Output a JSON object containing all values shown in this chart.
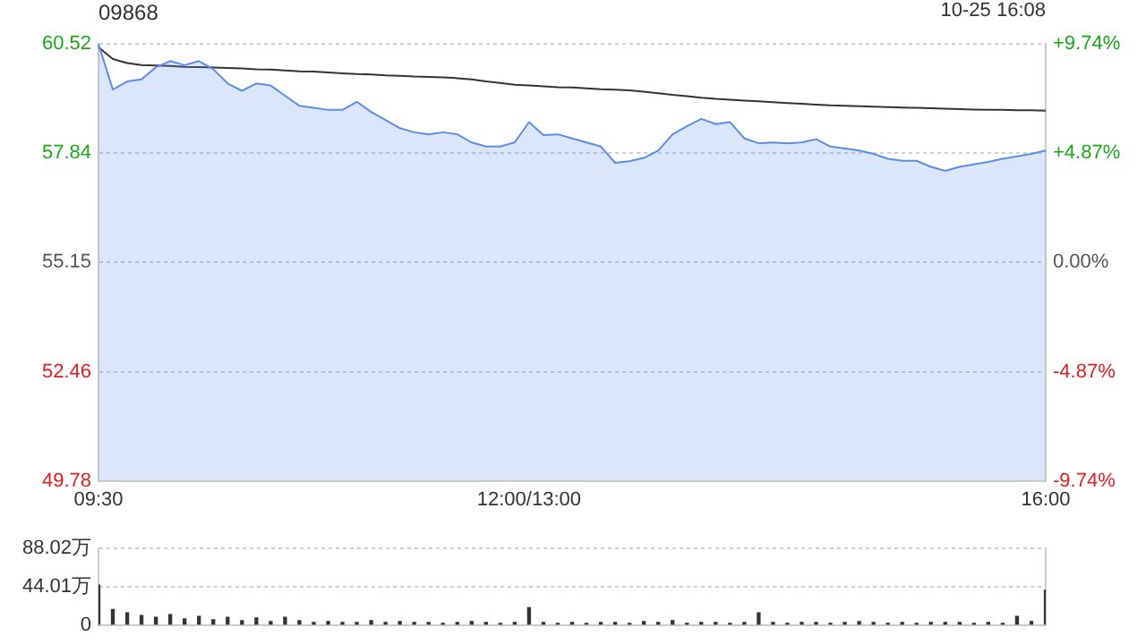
{
  "chart_data": [
    {
      "type": "line",
      "title": "09868",
      "annotations": [
        "10-25 16:08"
      ],
      "categories": [
        "09:30",
        null,
        null,
        null,
        null,
        null,
        null,
        null,
        null,
        null,
        null,
        null,
        null,
        null,
        null,
        null,
        null,
        null,
        null,
        null,
        null,
        null,
        null,
        null,
        null,
        null,
        null,
        null,
        null,
        null,
        "12:00/13:00",
        null,
        null,
        null,
        null,
        null,
        null,
        null,
        null,
        null,
        null,
        null,
        null,
        null,
        null,
        null,
        null,
        null,
        null,
        null,
        null,
        null,
        null,
        null,
        null,
        null,
        null,
        null,
        null,
        null,
        null,
        null,
        null,
        null,
        null,
        null,
        "16:00"
      ],
      "ylim": [
        49.78,
        60.52
      ],
      "yticks": [
        49.78,
        52.46,
        55.15,
        57.84,
        60.52
      ],
      "y2lim": [
        -9.74,
        9.74
      ],
      "y2ticks": [
        {
          "value": -9.74,
          "label": "-9.74%"
        },
        {
          "value": -4.87,
          "label": "-4.87%"
        },
        {
          "value": 0,
          "label": "0.00%"
        },
        {
          "value": 4.87,
          "label": "+4.87%"
        },
        {
          "value": 9.74,
          "label": "+9.74%"
        }
      ],
      "grid": true,
      "marker": "none",
      "series": [
        {
          "type": "area",
          "color": "#5b8ee6",
          "values": [
            60.52,
            59.4,
            59.6,
            59.65,
            59.95,
            60.1,
            60.0,
            60.1,
            59.9,
            59.55,
            59.37,
            59.55,
            59.5,
            59.25,
            59.0,
            58.95,
            58.9,
            58.9,
            59.1,
            58.85,
            58.65,
            58.45,
            58.35,
            58.3,
            58.35,
            58.3,
            58.1,
            58.0,
            58.0,
            58.1,
            58.6,
            58.28,
            58.3,
            58.2,
            58.1,
            58.0,
            57.6,
            57.64,
            57.72,
            57.9,
            58.3,
            58.5,
            58.68,
            58.55,
            58.6,
            58.2,
            58.08,
            58.1,
            58.08,
            58.1,
            58.18,
            58.0,
            57.95,
            57.9,
            57.82,
            57.7,
            57.65,
            57.65,
            57.5,
            57.4,
            57.5,
            57.56,
            57.62,
            57.7,
            57.76,
            57.82,
            57.9
          ]
        },
        {
          "type": "line",
          "color": "#333333",
          "values": [
            60.44,
            60.15,
            60.05,
            60.0,
            59.99,
            59.98,
            59.96,
            59.95,
            59.94,
            59.93,
            59.92,
            59.9,
            59.89,
            59.87,
            59.85,
            59.84,
            59.82,
            59.8,
            59.78,
            59.77,
            59.75,
            59.74,
            59.72,
            59.71,
            59.7,
            59.68,
            59.65,
            59.6,
            59.56,
            59.52,
            59.5,
            59.48,
            59.46,
            59.45,
            59.43,
            59.41,
            59.4,
            59.38,
            59.35,
            59.31,
            59.27,
            59.24,
            59.2,
            59.17,
            59.15,
            59.13,
            59.11,
            59.09,
            59.07,
            59.05,
            59.03,
            59.01,
            59.0,
            58.99,
            58.98,
            58.97,
            58.96,
            58.95,
            58.94,
            58.93,
            58.92,
            58.91,
            58.9,
            58.9,
            58.89,
            58.89,
            58.88
          ]
        }
      ]
    },
    {
      "type": "bar",
      "categories": [
        null,
        null,
        null,
        null,
        null,
        null,
        null,
        null,
        null,
        null,
        null,
        null,
        null,
        null,
        null,
        null,
        null,
        null,
        null,
        null,
        null,
        null,
        null,
        null,
        null,
        null,
        null,
        null,
        null,
        null,
        null,
        null,
        null,
        null,
        null,
        null,
        null,
        null,
        null,
        null,
        null,
        null,
        null,
        null,
        null,
        null,
        null,
        null,
        null,
        null,
        null,
        null,
        null,
        null,
        null,
        null,
        null,
        null,
        null,
        null,
        null,
        null,
        null,
        null,
        null,
        null,
        null
      ],
      "ylim": [
        0,
        88.02
      ],
      "yticks": [
        0,
        {
          "value": 44.01,
          "label": "44.01万"
        },
        {
          "value": 88.02,
          "label": "88.02万"
        }
      ],
      "grid": "y",
      "tick_labels": "y",
      "series": [
        {
          "color": "#333333",
          "values": [
            46,
            18,
            14,
            11,
            9,
            12,
            7,
            10,
            6,
            9,
            5,
            8,
            4,
            9,
            5,
            3,
            4,
            3,
            3,
            5,
            3,
            4,
            3,
            3,
            2,
            3,
            4,
            3,
            2,
            3,
            20,
            3,
            2,
            3,
            2,
            3,
            3,
            2,
            4,
            3,
            5,
            2,
            3,
            3,
            2,
            3,
            14,
            3,
            2,
            3,
            3,
            2,
            3,
            4,
            3,
            2,
            3,
            2,
            3,
            3,
            3,
            2,
            3,
            2,
            10,
            4,
            40
          ]
        }
      ]
    }
  ]
}
